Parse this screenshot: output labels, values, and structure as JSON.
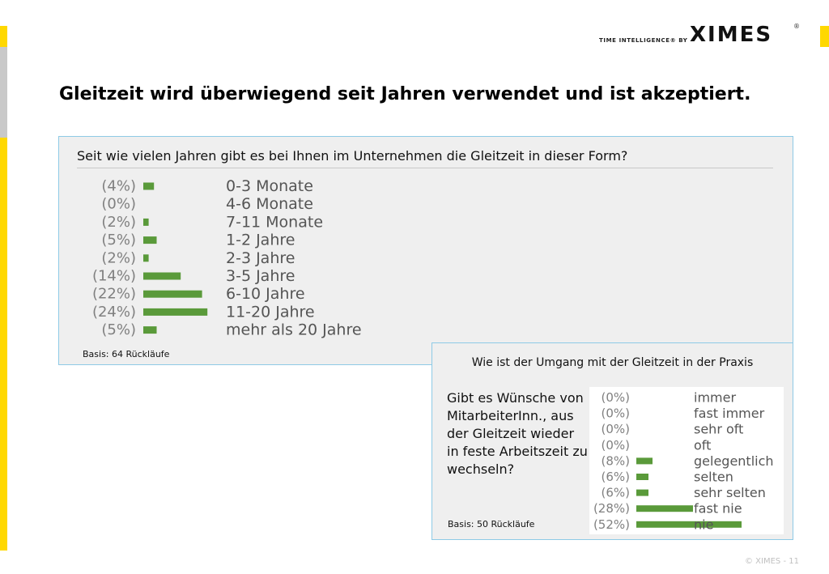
{
  "header": {
    "tagline": "TIME INTELLIGENCE® BY",
    "logo_text": "XIMES",
    "logo_reg": "®"
  },
  "page_title": "Gleitzeit wird überwiegend seit Jahren verwendet und ist akzeptiert.",
  "panel1": {
    "question": "Seit wie vielen Jahren gibt es bei Ihnen im Unternehmen die Gleitzeit in dieser Form?",
    "basis": "Basis: 64 Rückläufe"
  },
  "panel2": {
    "heading": "Wie ist der Umgang mit der Gleitzeit in der Praxis",
    "question": "Gibt es Wünsche von MitarbeiterInn., aus der Gleitzeit wieder in feste Arbeitszeit zu wechseln?",
    "basis": "Basis: 50 Rückläufe"
  },
  "footer": "© XIMES - 11",
  "colors": {
    "bar": "#5a9a3a",
    "accent": "#ffd800",
    "panel_border": "#8ecae6",
    "label": "#555555",
    "pct": "#808080"
  },
  "chart_data": [
    {
      "type": "bar",
      "orientation": "horizontal",
      "categories": [
        "0-3 Monate",
        "4-6 Monate",
        "7-11 Monate",
        "1-2 Jahre",
        "2-3 Jahre",
        "3-5 Jahre",
        "6-10 Jahre",
        "11-20 Jahre",
        "mehr als 20 Jahre"
      ],
      "values": [
        4,
        0,
        2,
        5,
        2,
        14,
        22,
        24,
        5
      ],
      "value_labels": [
        "(4%)",
        "(0%)",
        "(2%)",
        "(5%)",
        "(2%)",
        "(14%)",
        "(22%)",
        "(24%)",
        "(5%)"
      ],
      "unit": "%"
    },
    {
      "type": "bar",
      "orientation": "horizontal",
      "categories": [
        "immer",
        "fast immer",
        "sehr oft",
        "oft",
        "gelegentlich",
        "selten",
        "sehr selten",
        "fast nie",
        "nie"
      ],
      "values": [
        0,
        0,
        0,
        0,
        8,
        6,
        6,
        28,
        52
      ],
      "value_labels": [
        "(0%)",
        "(0%)",
        "(0%)",
        "(0%)",
        "(8%)",
        "(6%)",
        "(6%)",
        "(28%)",
        "(52%)"
      ],
      "unit": "%"
    }
  ]
}
